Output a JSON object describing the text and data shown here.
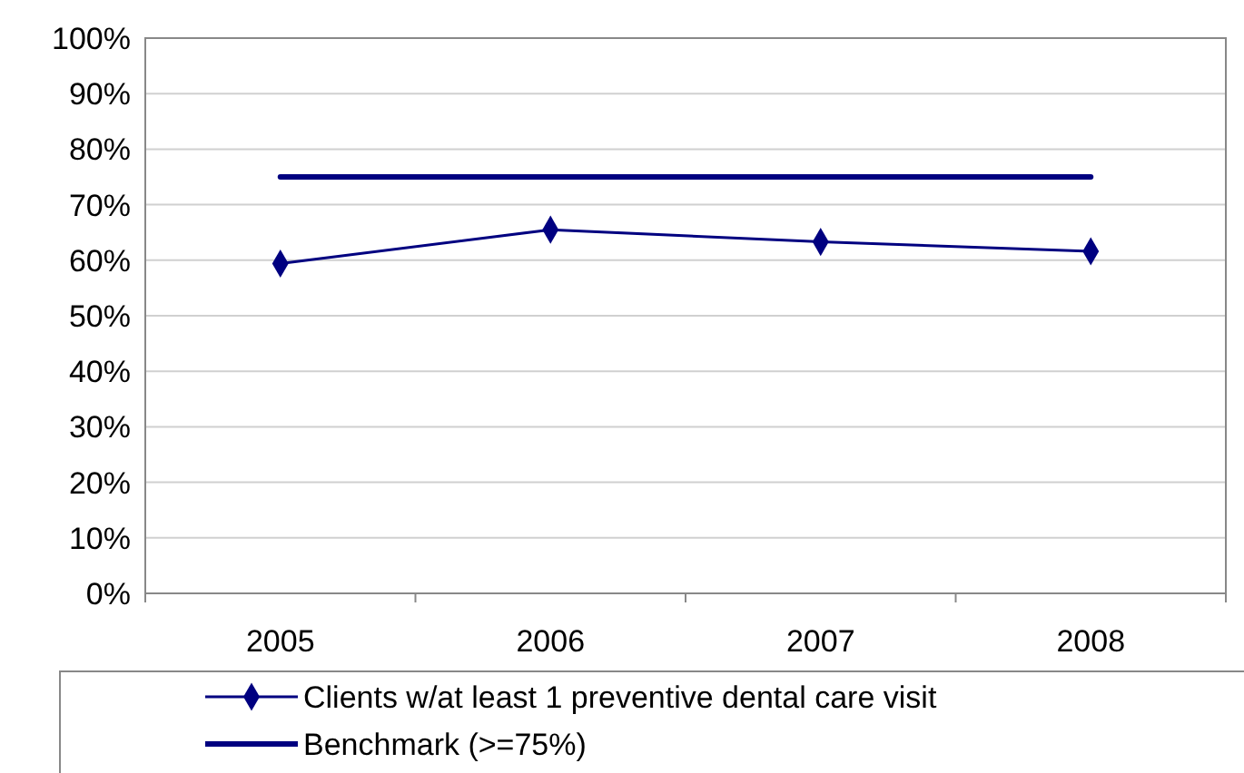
{
  "chart_data": {
    "type": "line",
    "categories": [
      "2005",
      "2006",
      "2007",
      "2008"
    ],
    "series": [
      {
        "name": "Clients w/at least 1 preventive dental care visit",
        "color": "#000080",
        "values": [
          59.4,
          65.5,
          63.3,
          61.6
        ],
        "marker": "diamond"
      },
      {
        "name": "Benchmark (>=75%)",
        "color": "#000080",
        "values": [
          75,
          75,
          75,
          75
        ],
        "marker": "none"
      }
    ],
    "ylim": [
      0,
      100
    ],
    "yticks": [
      {
        "value": 0,
        "label": "0%"
      },
      {
        "value": 10,
        "label": "10%"
      },
      {
        "value": 20,
        "label": "20%"
      },
      {
        "value": 30,
        "label": "30%"
      },
      {
        "value": 40,
        "label": "40%"
      },
      {
        "value": 50,
        "label": "50%"
      },
      {
        "value": 60,
        "label": "60%"
      },
      {
        "value": 70,
        "label": "70%"
      },
      {
        "value": 80,
        "label": "80%"
      },
      {
        "value": 90,
        "label": "90%"
      },
      {
        "value": 100,
        "label": "100%"
      }
    ],
    "grid": "y",
    "legend": "bottom"
  }
}
